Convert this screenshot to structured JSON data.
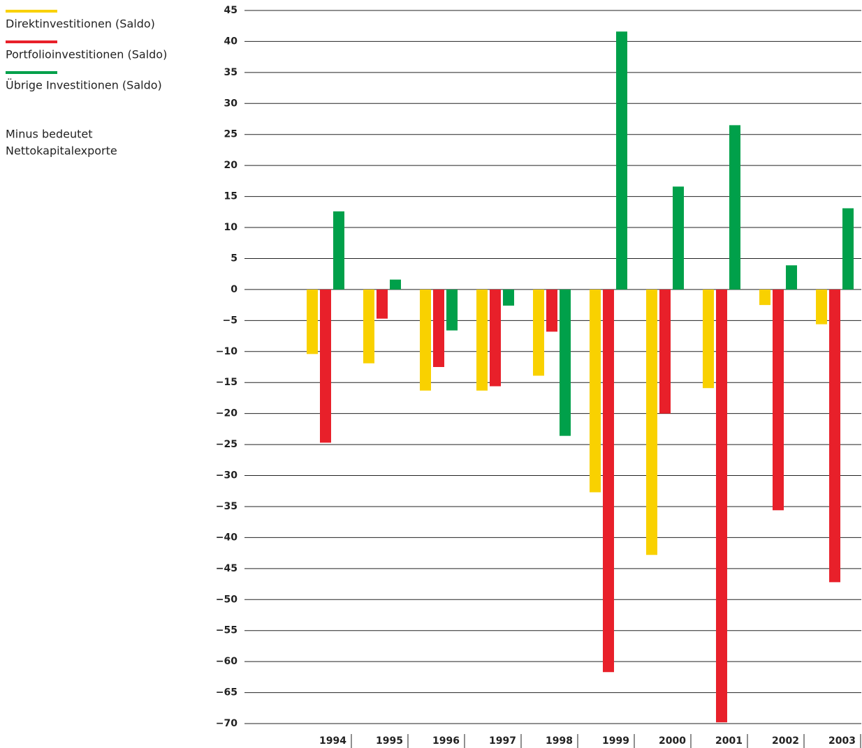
{
  "chart_data": {
    "type": "bar",
    "categories": [
      "1994",
      "1995",
      "1996",
      "1997",
      "1998",
      "1999",
      "2000",
      "2001",
      "2002",
      "2003"
    ],
    "series": [
      {
        "name": "Direktinvestitionen (Saldo)",
        "color": "#f9d100",
        "values": [
          -10.4,
          -11.9,
          -16.3,
          -16.3,
          -13.9,
          -32.7,
          -42.8,
          -15.9,
          -2.5,
          -5.6
        ]
      },
      {
        "name": "Portfolioinvestitionen (Saldo)",
        "color": "#e8202a",
        "values": [
          -24.7,
          -4.7,
          -12.5,
          -15.6,
          -6.8,
          -61.7,
          -20.0,
          -69.8,
          -35.6,
          -47.2
        ]
      },
      {
        "name": "Übrige Investitionen (Saldo)",
        "color": "#00a04a",
        "values": [
          12.6,
          1.6,
          -6.6,
          -2.6,
          -23.6,
          41.6,
          16.6,
          26.5,
          3.9,
          13.1
        ]
      }
    ],
    "note": [
      "Minus bedeutet",
      "Nettokapitalexporte"
    ],
    "ylim": [
      -70,
      45
    ],
    "yticks": [
      45,
      40,
      35,
      30,
      25,
      20,
      15,
      10,
      5,
      0,
      {
        "value": -5,
        "label": "−5"
      },
      {
        "value": -10,
        "label": "−10"
      },
      {
        "value": -15,
        "label": "−15"
      },
      {
        "value": -20,
        "label": "−20"
      },
      {
        "value": -25,
        "label": "−25"
      },
      {
        "value": -30,
        "label": "−30"
      },
      {
        "value": -35,
        "label": "−35"
      },
      {
        "value": -40,
        "label": "−40"
      },
      {
        "value": -45,
        "label": "−45"
      },
      {
        "value": -50,
        "label": "−50"
      },
      {
        "value": -55,
        "label": "−55"
      },
      {
        "value": -60,
        "label": "−60"
      },
      {
        "value": -65,
        "label": "−65"
      },
      {
        "value": -70,
        "label": "−70"
      }
    ],
    "grid": true
  }
}
